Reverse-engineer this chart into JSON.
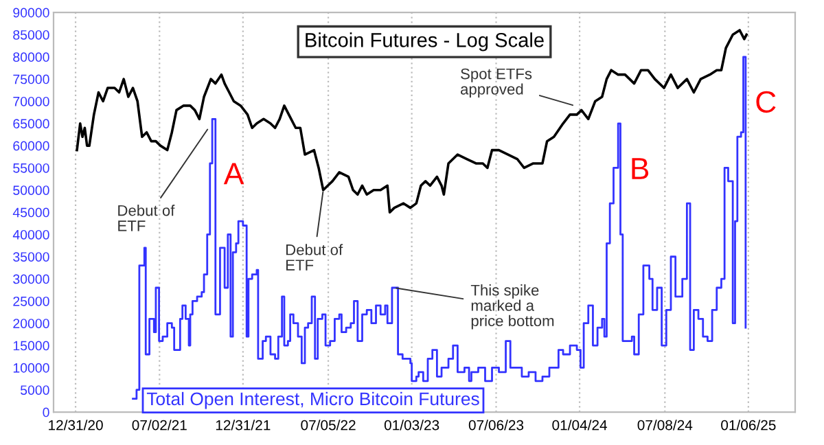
{
  "chart_data": {
    "type": "line",
    "title": "Bitcoin Futures - Log Scale",
    "annotations": [
      {
        "text": "A",
        "x": "2021-10-25",
        "y": 66000
      },
      {
        "text": "B",
        "x": "2024-03-28",
        "y": 65000
      },
      {
        "text": "C",
        "x": "2024-12-26",
        "y": 80000
      },
      {
        "text": "Debut of\nETF",
        "x": "2021-10-17",
        "y": 64000
      },
      {
        "text": "Debut of\nETF",
        "x": "2022-06-24",
        "y": 50000
      },
      {
        "text": "Spot ETFs\napproved",
        "x": "2023-12-24",
        "y": 69000
      },
      {
        "text": "This spike\nmarked a\nprice bottom",
        "x": "2022-11-26",
        "y": 28000
      }
    ],
    "series": [
      {
        "color": "#000000",
        "x": [
          "2021-01-03",
          "2021-01-10",
          "2021-01-15",
          "2021-01-20",
          "2021-01-25",
          "2021-01-30",
          "2021-02-09",
          "2021-02-19",
          "2021-03-01",
          "2021-03-11",
          "2021-03-26",
          "2021-04-05",
          "2021-04-15",
          "2021-04-25",
          "2021-05-05",
          "2021-05-15",
          "2021-05-25",
          "2021-06-04",
          "2021-06-14",
          "2021-06-24",
          "2021-07-04",
          "2021-07-19",
          "2021-07-29",
          "2021-08-08",
          "2021-08-23",
          "2021-09-07",
          "2021-09-17",
          "2021-09-27",
          "2021-10-07",
          "2021-10-22",
          "2021-11-01",
          "2021-11-14",
          "2021-11-21",
          "2021-12-01",
          "2021-12-11",
          "2021-12-26",
          "2022-01-10",
          "2022-01-20",
          "2022-01-30",
          "2022-02-14",
          "2022-03-01",
          "2022-03-11",
          "2022-03-21",
          "2022-03-31",
          "2022-04-10",
          "2022-04-25",
          "2022-05-05",
          "2022-05-15",
          "2022-06-04",
          "2022-06-14",
          "2022-06-24",
          "2022-07-04",
          "2022-07-14",
          "2022-07-29",
          "2022-08-18",
          "2022-08-28",
          "2022-09-07",
          "2022-09-17",
          "2022-09-27",
          "2022-10-12",
          "2022-10-27",
          "2022-11-11",
          "2022-11-16",
          "2022-11-26",
          "2022-12-16",
          "2022-12-31",
          "2023-01-13",
          "2023-01-23",
          "2023-02-02",
          "2023-02-12",
          "2023-02-27",
          "2023-03-09",
          "2023-03-14",
          "2023-03-24",
          "2023-04-13",
          "2023-05-03",
          "2023-05-23",
          "2023-06-07",
          "2023-06-17",
          "2023-06-27",
          "2023-07-12",
          "2023-08-01",
          "2023-08-21",
          "2023-09-05",
          "2023-09-25",
          "2023-10-15",
          "2023-10-25",
          "2023-11-09",
          "2023-11-29",
          "2023-12-14",
          "2023-12-29",
          "2024-01-08",
          "2024-01-23",
          "2024-02-07",
          "2024-02-22",
          "2024-03-03",
          "2024-03-13",
          "2024-03-28",
          "2024-04-12",
          "2024-05-02",
          "2024-05-17",
          "2024-06-01",
          "2024-06-16",
          "2024-07-06",
          "2024-07-21",
          "2024-08-05",
          "2024-08-25",
          "2024-09-09",
          "2024-09-24",
          "2024-10-14",
          "2024-10-29",
          "2024-11-08",
          "2024-11-18",
          "2024-12-03",
          "2024-12-18",
          "2024-12-28",
          "2025-01-02"
        ],
        "values": [
          59000,
          65000,
          62000,
          64000,
          60000,
          60000,
          67000,
          72000,
          70000,
          73000,
          73000,
          72000,
          75000,
          71000,
          73000,
          70000,
          62000,
          63000,
          61000,
          61000,
          60000,
          59000,
          63000,
          68000,
          69000,
          69000,
          68000,
          66000,
          71000,
          75000,
          74000,
          76000,
          74000,
          72000,
          70000,
          69000,
          67000,
          64000,
          65000,
          66000,
          65000,
          64000,
          66000,
          69000,
          67000,
          64000,
          64000,
          58000,
          59000,
          55000,
          50000,
          51000,
          52000,
          54000,
          53000,
          50000,
          49000,
          51000,
          49000,
          50000,
          50000,
          51000,
          45000,
          46000,
          47000,
          46000,
          47000,
          51000,
          52000,
          51000,
          53000,
          51000,
          49000,
          56000,
          58000,
          57000,
          56000,
          56000,
          55000,
          59000,
          59000,
          58000,
          57000,
          55000,
          56000,
          56000,
          61000,
          62000,
          65000,
          67000,
          67000,
          68000,
          66000,
          70000,
          71000,
          75000,
          77000,
          76000,
          76000,
          74000,
          77000,
          77000,
          75000,
          73000,
          76000,
          73000,
          75000,
          72000,
          75000,
          76000,
          77000,
          77000,
          82000,
          85000,
          86000,
          84000,
          85000
        ]
      },
      {
        "type": "step",
        "name": "Total Open Interest, Micro Bitcoin Futures",
        "color": "#3333ff",
        "x": [
          "2021-05-05",
          "2021-05-13",
          "2021-05-18",
          "2021-05-19",
          "2021-05-25",
          "2021-05-30",
          "2021-06-02",
          "2021-06-07",
          "2021-06-10",
          "2021-06-17",
          "2021-06-20",
          "2021-06-24",
          "2021-06-30",
          "2021-07-01",
          "2021-07-09",
          "2021-07-19",
          "2021-07-29",
          "2021-08-03",
          "2021-08-11",
          "2021-08-16",
          "2021-08-21",
          "2021-08-28",
          "2021-09-04",
          "2021-09-07",
          "2021-09-12",
          "2021-09-22",
          "2021-10-02",
          "2021-10-07",
          "2021-10-14",
          "2021-10-20",
          "2021-10-25",
          "2021-10-30",
          "2021-11-01",
          "2021-11-06",
          "2021-11-11",
          "2021-11-16",
          "2021-11-21",
          "2021-11-28",
          "2021-12-04",
          "2021-12-09",
          "2021-12-16",
          "2021-12-21",
          "2021-12-31",
          "2022-01-08",
          "2022-01-12",
          "2022-01-20",
          "2022-01-30",
          "2022-02-02",
          "2022-02-12",
          "2022-02-19",
          "2022-03-01",
          "2022-03-11",
          "2022-03-18",
          "2022-03-26",
          "2022-03-31",
          "2022-04-08",
          "2022-04-13",
          "2022-04-20",
          "2022-04-30",
          "2022-05-08",
          "2022-05-15",
          "2022-05-22",
          "2022-05-30",
          "2022-06-06",
          "2022-06-12",
          "2022-06-22",
          "2022-06-29",
          "2022-07-09",
          "2022-07-19",
          "2022-07-29",
          "2022-08-03",
          "2022-08-13",
          "2022-08-23",
          "2022-08-30",
          "2022-09-07",
          "2022-09-17",
          "2022-09-27",
          "2022-10-07",
          "2022-10-17",
          "2022-10-27",
          "2022-11-06",
          "2022-11-11",
          "2022-11-21",
          "2022-12-01",
          "2022-12-04",
          "2022-12-14",
          "2022-12-31",
          "2023-01-03",
          "2023-01-13",
          "2023-01-18",
          "2023-01-28",
          "2023-02-07",
          "2023-02-17",
          "2023-02-27",
          "2023-03-09",
          "2023-03-24",
          "2023-04-03",
          "2023-04-13",
          "2023-04-28",
          "2023-05-08",
          "2023-05-13",
          "2023-05-28",
          "2023-06-12",
          "2023-06-27",
          "2023-07-12",
          "2023-07-27",
          "2023-08-06",
          "2023-08-21",
          "2023-08-31",
          "2023-09-15",
          "2023-09-30",
          "2023-10-15",
          "2023-10-30",
          "2023-11-19",
          "2023-11-29",
          "2023-12-14",
          "2023-12-29",
          "2024-01-06",
          "2024-01-13",
          "2024-01-23",
          "2024-02-02",
          "2024-02-12",
          "2024-02-22",
          "2024-02-27",
          "2024-03-03",
          "2024-03-10",
          "2024-03-18",
          "2024-03-28",
          "2024-04-02",
          "2024-04-07",
          "2024-04-27",
          "2024-05-02",
          "2024-05-12",
          "2024-05-22",
          "2024-06-04",
          "2024-06-11",
          "2024-06-21",
          "2024-07-01",
          "2024-07-11",
          "2024-07-21",
          "2024-07-31",
          "2024-08-15",
          "2024-08-25",
          "2024-09-01",
          "2024-09-09",
          "2024-09-19",
          "2024-09-29",
          "2024-10-09",
          "2024-10-19",
          "2024-10-29",
          "2024-11-08",
          "2024-11-15",
          "2024-11-23",
          "2024-12-03",
          "2024-12-08",
          "2024-12-13",
          "2024-12-21",
          "2024-12-26",
          "2024-12-31"
        ],
        "values": [
          3000,
          5000,
          5000,
          33000,
          33000,
          37000,
          13000,
          13000,
          21000,
          21000,
          18000,
          28000,
          28000,
          16000,
          17000,
          20000,
          19000,
          14000,
          14000,
          21000,
          24000,
          21000,
          15000,
          22000,
          25000,
          26000,
          27000,
          31000,
          40000,
          56000,
          66000,
          66000,
          22000,
          22000,
          37000,
          37000,
          28000,
          40000,
          17000,
          36000,
          38000,
          43000,
          42000,
          17000,
          30000,
          31000,
          32000,
          12000,
          16000,
          17000,
          13000,
          12000,
          17000,
          26000,
          15000,
          16000,
          22000,
          20000,
          17000,
          11000,
          19000,
          20000,
          26000,
          12000,
          21000,
          22000,
          15000,
          16000,
          21000,
          22000,
          18000,
          19000,
          20000,
          25000,
          16000,
          22000,
          23000,
          20000,
          24000,
          22000,
          24000,
          20000,
          28000,
          28000,
          13000,
          12000,
          11000,
          7000,
          8000,
          9000,
          7000,
          12000,
          14000,
          8000,
          10000,
          12000,
          15000,
          9000,
          10000,
          7000,
          9000,
          10000,
          7000,
          10000,
          9000,
          16000,
          10000,
          10000,
          8000,
          9000,
          7000,
          8000,
          10000,
          14000,
          13000,
          15000,
          14000,
          10000,
          20000,
          24000,
          15000,
          19000,
          21000,
          17000,
          38000,
          47000,
          55000,
          65000,
          40000,
          16000,
          17000,
          13000,
          22000,
          33000,
          30000,
          23000,
          28000,
          15000,
          23000,
          35000,
          26000,
          30000,
          47000,
          14000,
          23000,
          21000,
          17000,
          16000,
          23000,
          28000,
          30000,
          55000,
          52000,
          20000,
          43000,
          62000,
          63000,
          80000,
          19000
        ]
      }
    ],
    "xlim": [
      "2020-11-13",
      "2025-04-18"
    ],
    "xticks": [
      {
        "value": "2020-12-31",
        "label": "12/31/20"
      },
      {
        "value": "2021-07-02",
        "label": "07/02/21"
      },
      {
        "value": "2021-12-31",
        "label": "12/31/21"
      },
      {
        "value": "2022-07-05",
        "label": "07/05/22"
      },
      {
        "value": "2023-01-03",
        "label": "01/03/23"
      },
      {
        "value": "2023-07-06",
        "label": "07/06/23"
      },
      {
        "value": "2024-01-04",
        "label": "01/04/24"
      },
      {
        "value": "2024-07-08",
        "label": "07/08/24"
      },
      {
        "value": "2025-01-06",
        "label": "01/06/25"
      }
    ],
    "ylim": [
      0,
      90000
    ],
    "yticks": [
      0,
      5000,
      10000,
      15000,
      20000,
      25000,
      30000,
      35000,
      40000,
      45000,
      50000,
      55000,
      60000,
      65000,
      70000,
      75000,
      80000,
      85000,
      90000
    ],
    "grid": "x",
    "legend": false
  }
}
